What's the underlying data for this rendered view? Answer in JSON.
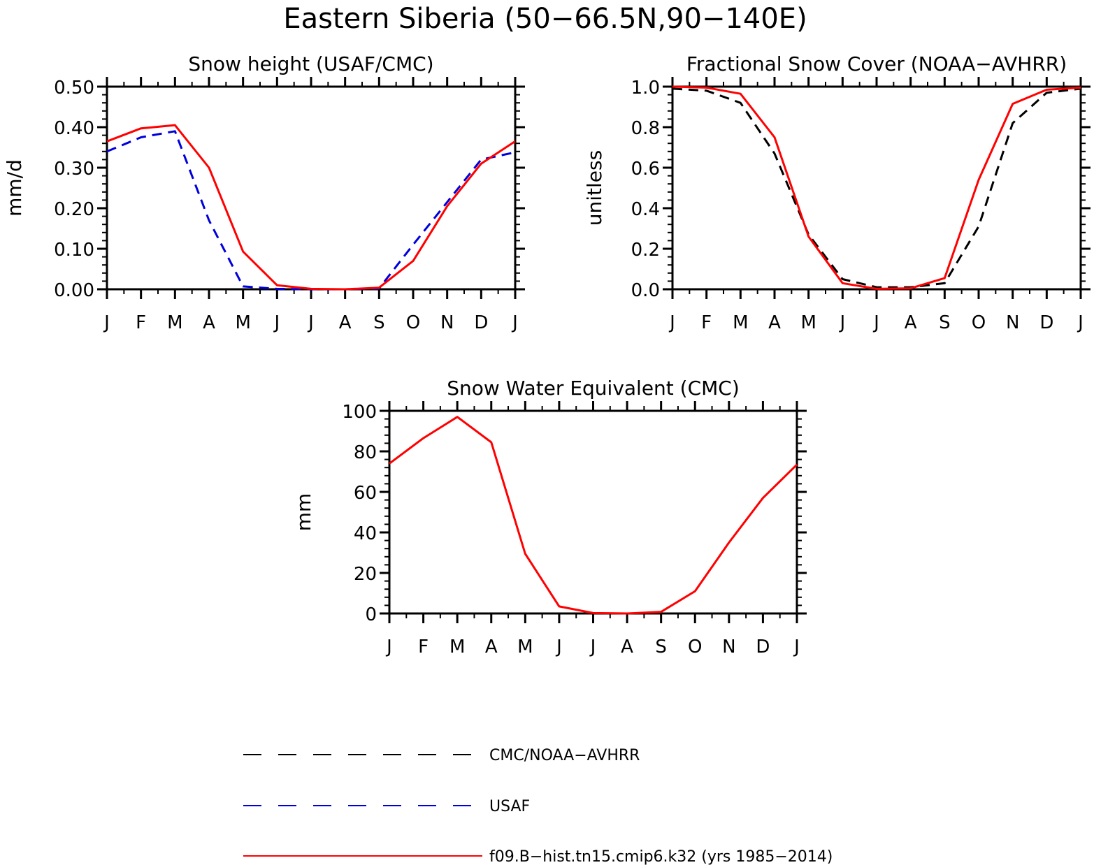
{
  "figure": {
    "title": "Eastern Siberia (50−66.5N,90−140E)"
  },
  "colors": {
    "model": "#ff0000",
    "usaf": "#0000dd",
    "obs": "#000000"
  },
  "legend": [
    {
      "key": "obs",
      "label": "CMC/NOAA−AVHRR",
      "dash": "26,24",
      "width": 2
    },
    {
      "key": "usaf",
      "label": "USAF",
      "dash": "26,24",
      "width": 2
    },
    {
      "key": "model",
      "label": "f09.B−hist.tn15.cmip6.k32 (yrs 1985−2014)",
      "dash": "",
      "width": 2
    }
  ],
  "chart_data": [
    {
      "type": "line",
      "title": "Snow height (USAF/CMC)",
      "xlabel": "",
      "ylabel": "mm/d",
      "categories": [
        "J",
        "F",
        "M",
        "A",
        "M",
        "J",
        "J",
        "A",
        "S",
        "O",
        "N",
        "D",
        "J"
      ],
      "ylim": [
        0,
        0.5
      ],
      "yticks": [
        "0.00",
        "0.10",
        "0.20",
        "0.30",
        "0.40",
        "0.50"
      ],
      "ytick_values": [
        0,
        0.1,
        0.2,
        0.3,
        0.4,
        0.5
      ],
      "series": [
        {
          "key": "obs",
          "values": [
            0,
            0,
            0,
            0,
            0,
            0,
            0,
            0,
            0,
            0,
            0,
            0,
            0
          ]
        },
        {
          "key": "usaf",
          "values": [
            0.34,
            0.375,
            0.39,
            0.17,
            0.007,
            0.001,
            0,
            0,
            0.002,
            0.11,
            0.215,
            0.32,
            0.338
          ]
        },
        {
          "key": "model",
          "values": [
            0.365,
            0.397,
            0.405,
            0.3,
            0.093,
            0.01,
            0.001,
            0,
            0.004,
            0.07,
            0.205,
            0.31,
            0.365
          ]
        }
      ]
    },
    {
      "type": "line",
      "title": "Fractional Snow Cover (NOAA−AVHRR)",
      "xlabel": "",
      "ylabel": "unitless",
      "categories": [
        "J",
        "F",
        "M",
        "A",
        "M",
        "J",
        "J",
        "A",
        "S",
        "O",
        "N",
        "D",
        "J"
      ],
      "ylim": [
        0,
        1.0
      ],
      "yticks": [
        "0.0",
        "0.2",
        "0.4",
        "0.6",
        "0.8",
        "1.0"
      ],
      "ytick_values": [
        0,
        0.2,
        0.4,
        0.6,
        0.8,
        1.0
      ],
      "series": [
        {
          "key": "obs",
          "values": [
            0.99,
            0.98,
            0.92,
            0.67,
            0.27,
            0.05,
            0.01,
            0.01,
            0.03,
            0.31,
            0.82,
            0.97,
            0.99
          ]
        },
        {
          "key": "model",
          "values": [
            1.0,
            0.995,
            0.965,
            0.75,
            0.26,
            0.03,
            0.002,
            0.005,
            0.055,
            0.54,
            0.915,
            0.985,
            0.995
          ]
        }
      ]
    },
    {
      "type": "line",
      "title": "Snow Water Equivalent (CMC)",
      "xlabel": "",
      "ylabel": "mm",
      "categories": [
        "J",
        "F",
        "M",
        "A",
        "M",
        "J",
        "J",
        "A",
        "S",
        "O",
        "N",
        "D",
        "J"
      ],
      "ylim": [
        0,
        100
      ],
      "yticks": [
        "0",
        "20",
        "40",
        "60",
        "80",
        "100"
      ],
      "ytick_values": [
        0,
        20,
        40,
        60,
        80,
        100
      ],
      "series": [
        {
          "key": "obs",
          "values": [
            0,
            0,
            0,
            0,
            0,
            0,
            0,
            0,
            0,
            0,
            0,
            0,
            0
          ]
        },
        {
          "key": "model",
          "values": [
            74,
            86.5,
            97,
            84.5,
            29.5,
            3.5,
            0.2,
            0,
            0.8,
            11,
            35,
            57,
            73.5
          ]
        }
      ]
    }
  ]
}
